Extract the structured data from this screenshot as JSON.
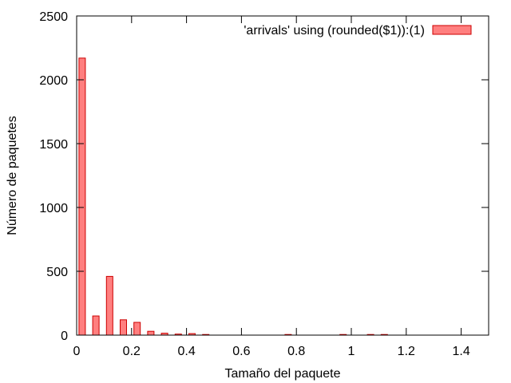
{
  "chart_data": {
    "type": "bar",
    "title": "",
    "xlabel": "Tamaño del paquete",
    "ylabel": "Número de paquetes",
    "xlim": [
      0,
      1.5
    ],
    "ylim": [
      0,
      2500
    ],
    "x_ticks": [
      0,
      0.2,
      0.4,
      0.6,
      0.8,
      1,
      1.2,
      1.4
    ],
    "x_tick_labels": [
      "0",
      "0.2",
      "0.4",
      "0.6",
      "0.8",
      "1",
      "1.2",
      "1.4"
    ],
    "y_ticks": [
      0,
      500,
      1000,
      1500,
      2000,
      2500
    ],
    "y_tick_labels": [
      "0",
      "500",
      "1000",
      "1500",
      "2000",
      "2500"
    ],
    "grid": false,
    "legend_position": "top-right",
    "series": [
      {
        "name": "'arrivals' using (rounded($1)):(1)",
        "color": "#ff7f7f",
        "edge_color": "#cc0000",
        "x": [
          0.02,
          0.07,
          0.12,
          0.17,
          0.22,
          0.27,
          0.32,
          0.37,
          0.42,
          0.47,
          0.77,
          0.97,
          1.07,
          1.12
        ],
        "values": [
          2170,
          150,
          460,
          120,
          100,
          30,
          15,
          8,
          12,
          5,
          5,
          5,
          5,
          5
        ]
      }
    ]
  }
}
